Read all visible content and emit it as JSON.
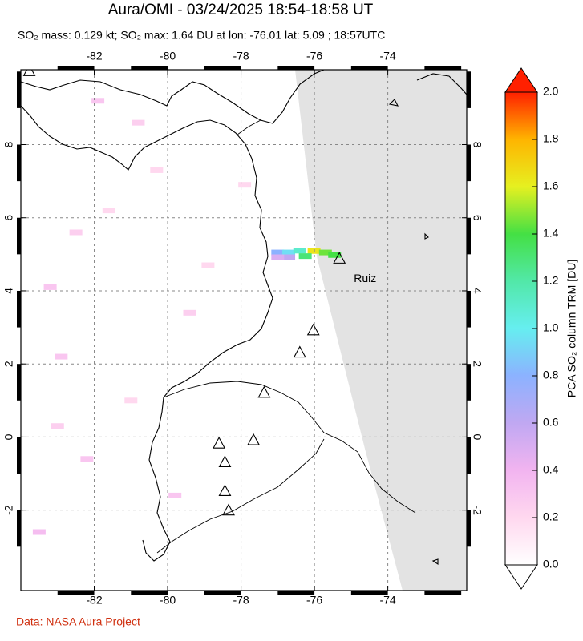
{
  "map": {
    "title": "Aura/OMI - 03/24/2025 18:54-18:58 UT",
    "subtitle": "SO₂ mass: 0.129 kt; SO₂ max: 1.64 DU at lon: -76.01 lat: 5.09 ; 18:57UTC",
    "xlim": [
      -84,
      -71.85
    ],
    "ylim": [
      -4.2,
      10.05
    ],
    "xticks": [
      -82,
      -80,
      -78,
      -76,
      -74
    ],
    "yticks": [
      -2,
      0,
      2,
      4,
      6,
      8
    ],
    "grid": true,
    "pixels": {
      "lon": [
        -77.0,
        -76.7,
        -76.4,
        -76.01,
        -75.7,
        -75.45,
        -76.25,
        -76.7,
        -77.0,
        -82.5,
        -81.6,
        -83.2,
        -80.3,
        -79.4,
        -82.9,
        -81.0,
        -79.8,
        -83.5,
        -80.8,
        -78.9,
        -82.2,
        -77.9,
        -81.9,
        -83.0
      ],
      "lat": [
        5.05,
        5.05,
        5.1,
        5.09,
        5.05,
        4.98,
        4.95,
        4.92,
        4.92,
        5.6,
        6.2,
        4.1,
        7.3,
        3.4,
        2.2,
        1.0,
        -1.6,
        -2.6,
        8.6,
        4.7,
        -0.6,
        6.9,
        9.2,
        0.3
      ],
      "values": [
        0.8,
        0.95,
        1.1,
        1.64,
        1.45,
        1.4,
        1.3,
        0.6,
        0.5,
        0.25,
        0.2,
        0.3,
        0.2,
        0.25,
        0.3,
        0.2,
        0.3,
        0.35,
        0.25,
        0.2,
        0.3,
        0.2,
        0.3,
        0.25
      ]
    },
    "volcanoes": {
      "lon": [
        -83.77,
        -75.32,
        -76.03,
        -76.4,
        -77.37,
        -77.66,
        -78.6,
        -78.44,
        -78.44,
        -78.34
      ],
      "lat": [
        10.02,
        4.89,
        2.93,
        2.32,
        1.22,
        -0.08,
        -0.17,
        -0.68,
        -1.47,
        -2.0
      ]
    },
    "volcano_label": "Ruiz",
    "colorbar": {
      "label": "PCA SO₂ column TRM [DU]",
      "lim": [
        0,
        2
      ],
      "ticks": [
        {
          "value": 0,
          "label": "0.0"
        },
        0.2,
        0.4,
        0.6,
        0.8,
        {
          "value": 1,
          "label": "1.0"
        },
        1.2,
        1.4,
        1.6,
        1.8,
        {
          "value": 2,
          "label": "2.0"
        }
      ],
      "colormap": [
        "#ffffff",
        "#ffd8ef",
        "#f2b4f0",
        "#c0a8f2",
        "#8cb2ff",
        "#66eef0",
        "#52e8a8",
        "#44e044",
        "#e6f020",
        "#ffb400",
        "#ff2000"
      ]
    },
    "credit": "Data: NASA Aura Project"
  }
}
